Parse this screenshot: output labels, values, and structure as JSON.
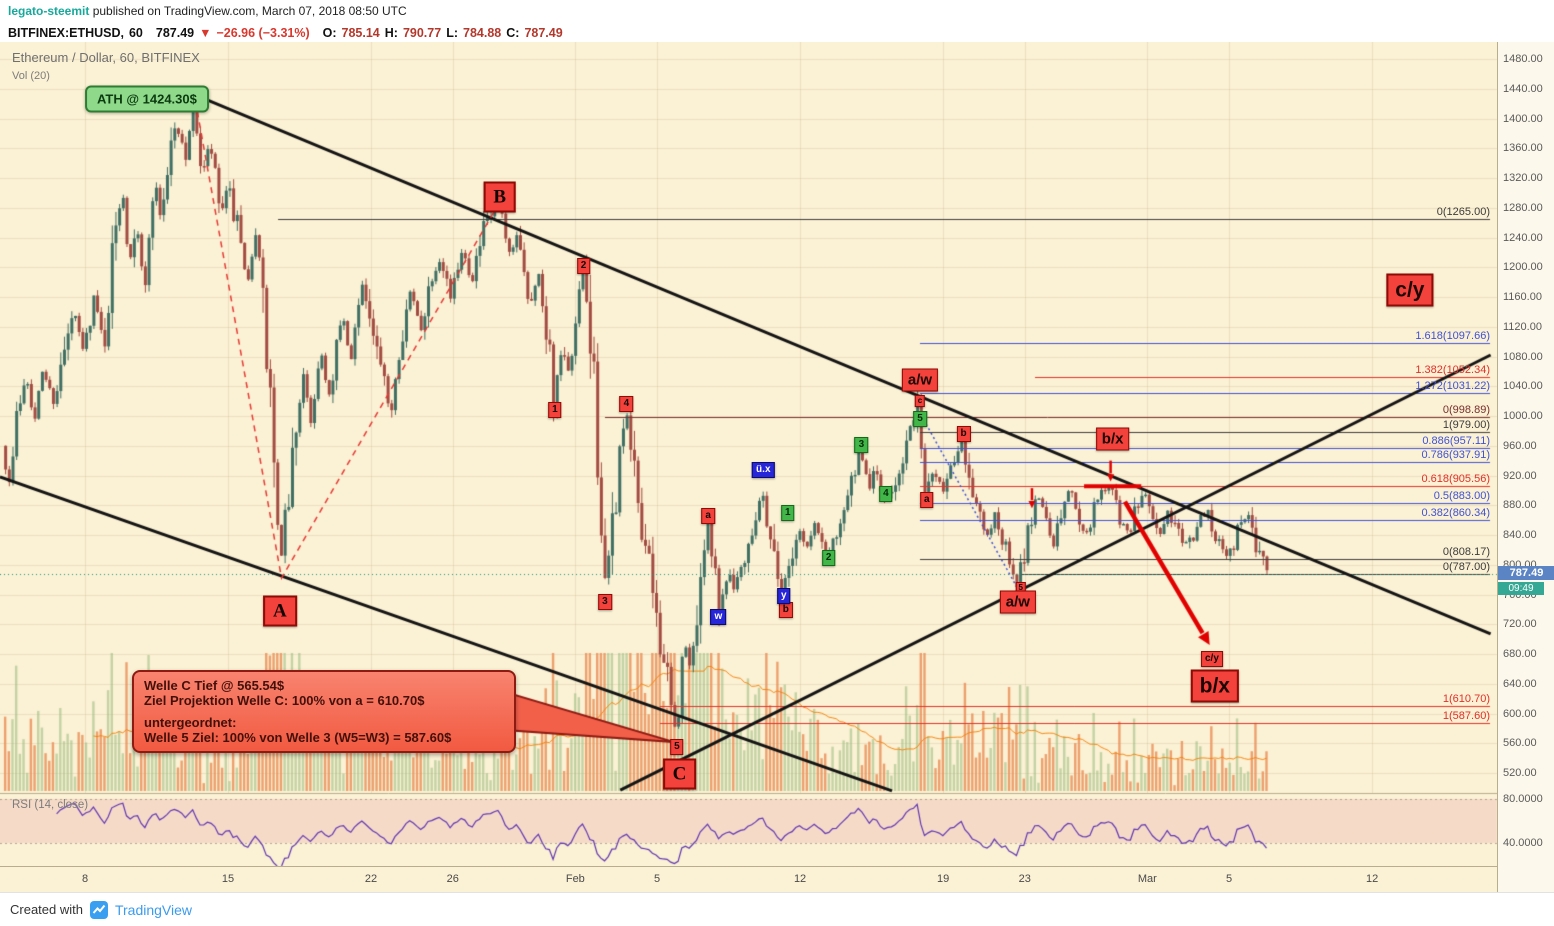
{
  "meta": {
    "publisher": "legato-steemit",
    "published_text": " published on TradingView.com, March 07, 2018 08:50 UTC"
  },
  "symbol_bar": {
    "symbol": "BITFINEX:ETHUSD,",
    "interval": "60",
    "last": "787.49",
    "arrow": "▼",
    "change": "−26.96 (−3.31%)",
    "o_label": "O:",
    "o_val": "785.14",
    "h_label": "H:",
    "h_val": "790.77",
    "l_label": "L:",
    "l_val": "784.88",
    "c_label": "C:",
    "c_val": "787.49"
  },
  "chart_header": {
    "title": "Ethereum / Dollar, 60, BITFINEX",
    "vol_label": "Vol (20)"
  },
  "rsi": {
    "label": "RSI (14, close)",
    "upper_label": "80.0000",
    "lower_label": "40.0000",
    "band": [
      40,
      80
    ],
    "period": 14
  },
  "price_scale_badges": {
    "last": "787.49",
    "countdown": "09:49"
  },
  "axis": {
    "price": {
      "min": 520,
      "max": 1480,
      "step": 40
    },
    "time_ticks": [
      {
        "d": 4,
        "label": "8"
      },
      {
        "d": 11,
        "label": "15"
      },
      {
        "d": 18,
        "label": "22"
      },
      {
        "d": 22,
        "label": "26"
      },
      {
        "d": 28,
        "label": "Feb"
      },
      {
        "d": 32,
        "label": "5"
      },
      {
        "d": 39,
        "label": "12"
      },
      {
        "d": 46,
        "label": "19"
      },
      {
        "d": 50,
        "label": "23"
      },
      {
        "d": 56,
        "label": "Mar"
      },
      {
        "d": 60,
        "label": "5"
      },
      {
        "d": 67,
        "label": "12"
      }
    ]
  },
  "footer": {
    "created_with": "Created with",
    "brand": "TradingView"
  },
  "chart_data": {
    "type": "candlestick+volume+rsi",
    "title": "Ethereum / Dollar, 60, BITFINEX",
    "symbol": "BITFINEX:ETHUSD",
    "interval_minutes": 60,
    "current_price": 787.49,
    "ohlc_last": {
      "o": 785.14,
      "h": 790.77,
      "l": 784.88,
      "c": 787.49
    },
    "ath": 1424.3,
    "price_axis": {
      "min": 520,
      "max": 1480,
      "step": 40
    },
    "keypoints": [
      [
        0,
        960
      ],
      [
        0.4,
        905
      ],
      [
        0.8,
        1015
      ],
      [
        1.2,
        1060
      ],
      [
        1.6,
        990
      ],
      [
        2,
        1065
      ],
      [
        2.5,
        1020
      ],
      [
        3,
        1075
      ],
      [
        3.5,
        1140
      ],
      [
        4,
        1085
      ],
      [
        4.5,
        1160
      ],
      [
        5,
        1095
      ],
      [
        5.5,
        1235
      ],
      [
        5.9,
        1312
      ],
      [
        6.2,
        1210
      ],
      [
        6.6,
        1268
      ],
      [
        7,
        1160
      ],
      [
        7.4,
        1315
      ],
      [
        7.8,
        1270
      ],
      [
        8.4,
        1392
      ],
      [
        9,
        1355
      ],
      [
        9.4,
        1424
      ],
      [
        9.8,
        1318
      ],
      [
        10.2,
        1365
      ],
      [
        10.7,
        1270
      ],
      [
        11.1,
        1305
      ],
      [
        11.6,
        1240
      ],
      [
        12,
        1165
      ],
      [
        12.4,
        1258
      ],
      [
        12.8,
        1132
      ],
      [
        13.1,
        1035
      ],
      [
        13.4,
        900
      ],
      [
        13.6,
        778
      ],
      [
        13.9,
        870
      ],
      [
        14.3,
        960
      ],
      [
        14.7,
        1060
      ],
      [
        15.1,
        990
      ],
      [
        15.6,
        1090
      ],
      [
        16.1,
        1015
      ],
      [
        16.6,
        1140
      ],
      [
        17.1,
        1070
      ],
      [
        17.6,
        1190
      ],
      [
        18.1,
        1112
      ],
      [
        18.6,
        1055
      ],
      [
        19,
        1000
      ],
      [
        19.5,
        1110
      ],
      [
        20,
        1165
      ],
      [
        20.5,
        1118
      ],
      [
        21,
        1188
      ],
      [
        21.5,
        1220
      ],
      [
        22,
        1155
      ],
      [
        22.5,
        1228
      ],
      [
        23,
        1185
      ],
      [
        23.6,
        1250
      ],
      [
        24.3,
        1288
      ],
      [
        24.8,
        1208
      ],
      [
        25.3,
        1248
      ],
      [
        25.8,
        1155
      ],
      [
        26.3,
        1188
      ],
      [
        26.8,
        1098
      ],
      [
        27,
        1010
      ],
      [
        27.4,
        1090
      ],
      [
        27.8,
        1042
      ],
      [
        28.4,
        1200
      ],
      [
        28.8,
        1105
      ],
      [
        29.1,
        1000
      ],
      [
        29.5,
        755
      ],
      [
        29.9,
        855
      ],
      [
        30.5,
        1012
      ],
      [
        30.9,
        930
      ],
      [
        31.3,
        855
      ],
      [
        31.7,
        790
      ],
      [
        32.1,
        725
      ],
      [
        32.5,
        650
      ],
      [
        33,
        566
      ],
      [
        33.4,
        700
      ],
      [
        33.7,
        648
      ],
      [
        34.1,
        762
      ],
      [
        34.5,
        855
      ],
      [
        34.9,
        812
      ],
      [
        35.1,
        732
      ],
      [
        35.5,
        792
      ],
      [
        35.9,
        772
      ],
      [
        36.3,
        810
      ],
      [
        36.7,
        850
      ],
      [
        37.2,
        898
      ],
      [
        37.6,
        842
      ],
      [
        38.2,
        756
      ],
      [
        38.6,
        812
      ],
      [
        39,
        850
      ],
      [
        39.4,
        822
      ],
      [
        39.8,
        855
      ],
      [
        40.4,
        810
      ],
      [
        40.9,
        852
      ],
      [
        41.4,
        892
      ],
      [
        42,
        950
      ],
      [
        42.4,
        905
      ],
      [
        42.8,
        928
      ],
      [
        43.2,
        880
      ],
      [
        43.7,
        912
      ],
      [
        44.2,
        958
      ],
      [
        44.9,
        1012
      ],
      [
        45.2,
        887
      ],
      [
        45.6,
        930
      ],
      [
        46.1,
        902
      ],
      [
        46.6,
        948
      ],
      [
        47,
        972
      ],
      [
        47.4,
        915
      ],
      [
        47.8,
        870
      ],
      [
        48.2,
        832
      ],
      [
        48.6,
        870
      ],
      [
        49,
        830
      ],
      [
        49.4,
        795
      ],
      [
        49.7,
        766
      ],
      [
        50.2,
        840
      ],
      [
        50.7,
        898
      ],
      [
        51.1,
        862
      ],
      [
        51.5,
        830
      ],
      [
        51.9,
        872
      ],
      [
        52.3,
        905
      ],
      [
        52.7,
        868
      ],
      [
        53.1,
        840
      ],
      [
        53.5,
        880
      ],
      [
        53.9,
        906
      ],
      [
        54.3,
        900
      ],
      [
        54.7,
        868
      ],
      [
        55.1,
        840
      ],
      [
        55.5,
        872
      ],
      [
        55.9,
        900
      ],
      [
        56.3,
        868
      ],
      [
        56.7,
        842
      ],
      [
        57.1,
        870
      ],
      [
        57.5,
        848
      ],
      [
        58,
        822
      ],
      [
        58.5,
        855
      ],
      [
        59,
        870
      ],
      [
        59.5,
        838
      ],
      [
        60,
        812
      ],
      [
        60.5,
        845
      ],
      [
        61,
        868
      ],
      [
        61.5,
        820
      ],
      [
        62,
        787.49
      ]
    ],
    "levels": [
      {
        "p": 1265.0,
        "label": "0(1265.00)",
        "color": "#3c3c3c",
        "from_d": 13.45
      },
      {
        "p": 1097.66,
        "label": "1.618(1097.66)",
        "color": "#3f51d6",
        "from_d": 44.87
      },
      {
        "p": 1052.34,
        "label": "1.382(1052.34)",
        "color": "#e0312a",
        "from_d": 50.5
      },
      {
        "p": 1031.22,
        "label": "1.272(1031.22)",
        "color": "#3f51d6",
        "from_d": 44.87
      },
      {
        "p": 998.89,
        "label": "0(998.89)",
        "color": "#7a2e2e",
        "from_d": 29.45
      },
      {
        "p": 979.0,
        "label": "1(979.00)",
        "color": "#3c3c3c",
        "from_d": 44.87
      },
      {
        "p": 957.11,
        "label": "0.886(957.11)",
        "color": "#3f51d6",
        "from_d": 44.87
      },
      {
        "p": 937.91,
        "label": "0.786(937.91)",
        "color": "#3f51d6",
        "from_d": 44.87
      },
      {
        "p": 905.56,
        "label": "0.618(905.56)",
        "color": "#e0312a",
        "from_d": 44.87
      },
      {
        "p": 883.0,
        "label": "0.5(883.00)",
        "color": "#3f51d6",
        "from_d": 44.87
      },
      {
        "p": 860.34,
        "label": "0.382(860.34)",
        "color": "#3f51d6",
        "from_d": 44.87
      },
      {
        "p": 808.17,
        "label": "0(808.17)",
        "color": "#3c3c3c",
        "from_d": 44.87
      },
      {
        "p": 787.0,
        "label": "0(787.00)",
        "color": "#3c3c3c",
        "from_d": 49.85
      },
      {
        "p": 610.7,
        "label": "1(610.70)",
        "color": "#e0312a",
        "from_d": 32.14
      },
      {
        "p": 587.6,
        "label": "1(587.60)",
        "color": "#e0312a",
        "from_d": 32.14
      }
    ],
    "trendlines": [
      {
        "d1": 9.97,
        "p1": 1425,
        "d2": 72.8,
        "p2": 707
      },
      {
        "d1": -0.16,
        "p1": 918,
        "d2": 43.5,
        "p2": 496
      },
      {
        "d1": 30.2,
        "p1": 497,
        "d2": 72.8,
        "p2": 1082
      }
    ],
    "dashed_red": [
      [
        9.4,
        1424
      ],
      [
        13.62,
        782
      ],
      [
        24.3,
        1288
      ]
    ],
    "dotted_blue": [
      [
        45.05,
        995
      ],
      [
        49.65,
        768
      ]
    ],
    "arrows": [
      {
        "type": "small",
        "d": 50.35,
        "p_from": 903,
        "p_to": 876
      },
      {
        "type": "small",
        "d": 54.2,
        "p_from": 940,
        "p_to": 912
      },
      {
        "type": "big",
        "d_from": 54.9,
        "p_from": 885,
        "d_to": 59.05,
        "p_to": 692
      }
    ],
    "red_bar": {
      "d1": 52.9,
      "d2": 55.7,
      "p": 905.56
    },
    "ath_label": {
      "text": "ATH @ 1424.30$",
      "d": 7.03,
      "p": 1426
    },
    "annotations": [
      {
        "text": "B",
        "d": 24.3,
        "p": 1294,
        "cls": "letter"
      },
      {
        "text": "A",
        "d": 13.54,
        "p": 738,
        "cls": "letter"
      },
      {
        "text": "C",
        "d": 33.1,
        "p": 519,
        "cls": "letter"
      },
      {
        "text": "1",
        "d": 27.0,
        "p": 1008,
        "cls": "red-sm"
      },
      {
        "text": "2",
        "d": 28.4,
        "p": 1202,
        "cls": "red-sm"
      },
      {
        "text": "3",
        "d": 29.45,
        "p": 750,
        "cls": "red-sm"
      },
      {
        "text": "4",
        "d": 30.5,
        "p": 1016,
        "cls": "red-sm"
      },
      {
        "text": "5",
        "d": 32.97,
        "p": 555,
        "cls": "red-sm"
      },
      {
        "text": "a",
        "d": 34.5,
        "p": 866,
        "cls": "red-sm"
      },
      {
        "text": "b",
        "d": 38.3,
        "p": 739,
        "cls": "red-sm"
      },
      {
        "text": "b",
        "d": 47.0,
        "p": 976,
        "cls": "red-sm"
      },
      {
        "text": "a",
        "d": 45.2,
        "p": 887,
        "cls": "red-sm"
      },
      {
        "text": "c",
        "d": 44.87,
        "p": 1020,
        "cls": "red-xs"
      },
      {
        "text": "5",
        "d": 49.8,
        "p": 769,
        "cls": "red-xs"
      },
      {
        "text": "1",
        "d": 38.4,
        "p": 870,
        "cls": "green-sm"
      },
      {
        "text": "2",
        "d": 40.4,
        "p": 809,
        "cls": "green-sm"
      },
      {
        "text": "3",
        "d": 42.0,
        "p": 961,
        "cls": "green-sm"
      },
      {
        "text": "4",
        "d": 43.2,
        "p": 895,
        "cls": "green-sm"
      },
      {
        "text": "5",
        "d": 44.87,
        "p": 996,
        "cls": "green-sm"
      },
      {
        "text": "ü.x",
        "d": 37.2,
        "p": 927,
        "cls": "blue-sm"
      },
      {
        "text": "w",
        "d": 35.0,
        "p": 730,
        "cls": "blue-sm"
      },
      {
        "text": "y",
        "d": 38.2,
        "p": 758,
        "cls": "blue-sm"
      },
      {
        "text": "a/w",
        "d": 44.87,
        "p": 1048,
        "cls": "red-md"
      },
      {
        "text": "b/x",
        "d": 54.3,
        "p": 969,
        "cls": "red-md"
      },
      {
        "text": "a/w",
        "d": 49.66,
        "p": 750,
        "cls": "red-md"
      },
      {
        "text": "c/y",
        "d": 59.16,
        "p": 673,
        "cls": "red-sm"
      },
      {
        "text": "c/y",
        "d": 68.85,
        "p": 1169,
        "cls": "red-xl"
      },
      {
        "text": "b/x",
        "d": 59.3,
        "p": 637,
        "cls": "red-xl"
      }
    ],
    "callout": {
      "lines": [
        "Welle C Tief @ 565.54$",
        "Ziel Projektion Welle C: 100% von a = 610.70$",
        "",
        "untergeordnet:",
        "Welle 5 Ziel: 100% von Welle 3 (W5=W3) = 587.60$"
      ]
    }
  }
}
